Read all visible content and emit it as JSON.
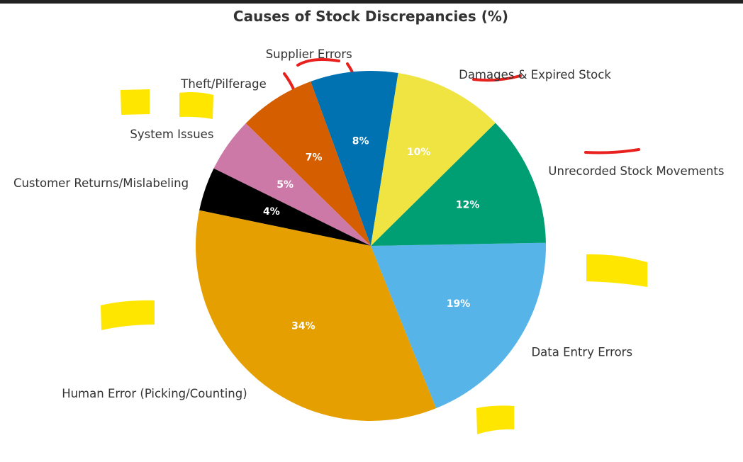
{
  "chart_data": {
    "type": "pie",
    "title": "Causes of Stock Discrepancies (%)",
    "slices": [
      {
        "label": "Supplier Errors",
        "value": 8,
        "pct_label": "8%",
        "color": "#0072B2"
      },
      {
        "label": "Theft/Pilferage",
        "value": 7,
        "pct_label": "7%",
        "color": "#D55E00"
      },
      {
        "label": "System Issues",
        "value": 5,
        "pct_label": "5%",
        "color": "#CC79A7"
      },
      {
        "label": "Customer Returns/Mislabeling",
        "value": 4,
        "pct_label": "4%",
        "color": "#000000"
      },
      {
        "label": "Human Error (Picking/Counting)",
        "value": 34,
        "pct_label": "34%",
        "color": "#E69F00"
      },
      {
        "label": "Data Entry Errors",
        "value": 19,
        "pct_label": "19%",
        "color": "#56B4E9"
      },
      {
        "label": "Unrecorded Stock Movements",
        "value": 12,
        "pct_label": "12%",
        "color": "#009E73"
      },
      {
        "label": "Damages & Expired Stock",
        "value": 10,
        "pct_label": "10%",
        "color": "#F0E442"
      }
    ],
    "direction": "counterclockwise",
    "start_angle_deg": 81
  }
}
